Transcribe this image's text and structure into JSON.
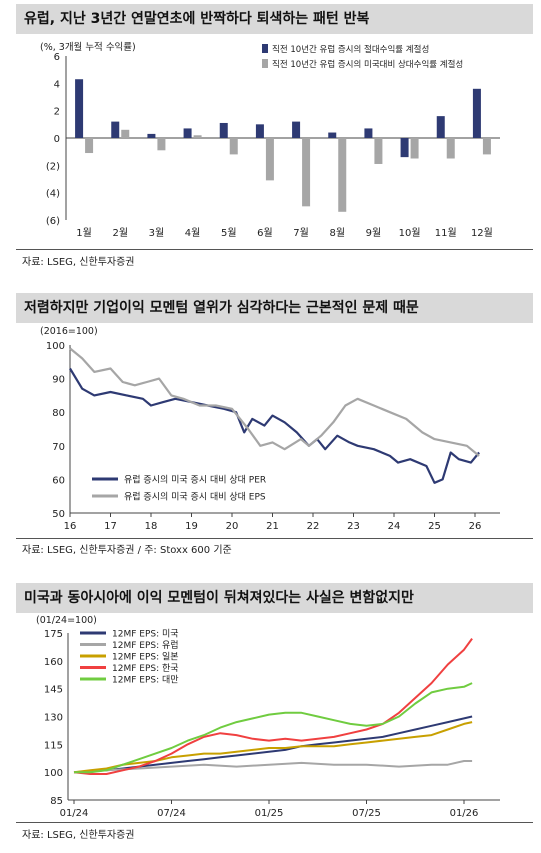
{
  "chart_data": [
    {
      "type": "bar",
      "title": "유럽, 지난 3년간 연말연초에 반짝하다 퇴색하는 패턴 반복",
      "ylabel": "(%, 3개월 누적 수익률)",
      "ylim": [
        -6,
        6
      ],
      "yticks": [
        "6",
        "4",
        "2",
        "0",
        "(2)",
        "(4)",
        "(6)"
      ],
      "legend_position": "top-right",
      "categories": [
        "1월",
        "2월",
        "3월",
        "4월",
        "5월",
        "6월",
        "7월",
        "8월",
        "9월",
        "10월",
        "11월",
        "12월"
      ],
      "series": [
        {
          "name": "직전 10년간 유럽 증시의 절대수익률 계절성",
          "color": "#2e3a73",
          "values": [
            4.3,
            1.2,
            0.3,
            0.7,
            1.1,
            1.0,
            1.2,
            0.4,
            0.7,
            -1.4,
            1.6,
            3.6
          ]
        },
        {
          "name": "직전 10년간 유럽 증시의 미국대비 상대수익률 계절성",
          "color": "#a6a6a6",
          "values": [
            -1.1,
            0.6,
            -0.9,
            0.2,
            -1.2,
            -3.1,
            -5.0,
            -5.4,
            -1.9,
            -1.5,
            -1.5,
            -1.2
          ]
        }
      ],
      "source": "자료: LSEG, 신한투자증권"
    },
    {
      "type": "line",
      "title": "저렴하지만 기업이익 모멘텀 열위가 심각하다는 근본적인 문제 때문",
      "ylabel": "(2016=100)",
      "ylim": [
        50,
        100
      ],
      "xlim": [
        16,
        26.2
      ],
      "xticks": [
        "16",
        "17",
        "18",
        "19",
        "20",
        "21",
        "22",
        "23",
        "24",
        "25",
        "26"
      ],
      "yticks": [
        "100",
        "90",
        "80",
        "70",
        "60",
        "50"
      ],
      "legend_position": "bottom-left",
      "series": [
        {
          "name": "유럽 증시의 미국 증시 대비 상대 PER",
          "color": "#2e3a73",
          "points": [
            [
              16.0,
              93
            ],
            [
              16.3,
              87
            ],
            [
              16.6,
              85
            ],
            [
              17.0,
              86
            ],
            [
              17.4,
              85
            ],
            [
              17.8,
              84
            ],
            [
              18.0,
              82
            ],
            [
              18.3,
              83
            ],
            [
              18.6,
              84
            ],
            [
              19.0,
              83
            ],
            [
              19.4,
              82
            ],
            [
              19.8,
              81
            ],
            [
              20.1,
              80
            ],
            [
              20.3,
              74
            ],
            [
              20.5,
              78
            ],
            [
              20.8,
              76
            ],
            [
              21.0,
              79
            ],
            [
              21.3,
              77
            ],
            [
              21.6,
              74
            ],
            [
              21.9,
              70
            ],
            [
              22.1,
              72
            ],
            [
              22.3,
              69
            ],
            [
              22.6,
              73
            ],
            [
              22.9,
              71
            ],
            [
              23.1,
              70
            ],
            [
              23.5,
              69
            ],
            [
              23.9,
              67
            ],
            [
              24.1,
              65
            ],
            [
              24.4,
              66
            ],
            [
              24.8,
              64
            ],
            [
              25.0,
              59
            ],
            [
              25.2,
              60
            ],
            [
              25.4,
              68
            ],
            [
              25.6,
              66
            ],
            [
              25.9,
              65
            ],
            [
              26.1,
              68
            ]
          ]
        },
        {
          "name": "유럽 증시의 미국 증시 대비 상대 EPS",
          "color": "#a6a6a6",
          "points": [
            [
              16.0,
              99
            ],
            [
              16.3,
              96
            ],
            [
              16.6,
              92
            ],
            [
              17.0,
              93
            ],
            [
              17.3,
              89
            ],
            [
              17.6,
              88
            ],
            [
              17.9,
              89
            ],
            [
              18.2,
              90
            ],
            [
              18.5,
              85
            ],
            [
              18.8,
              84
            ],
            [
              19.2,
              82
            ],
            [
              19.6,
              82
            ],
            [
              20.0,
              81
            ],
            [
              20.4,
              75
            ],
            [
              20.7,
              70
            ],
            [
              21.0,
              71
            ],
            [
              21.3,
              69
            ],
            [
              21.7,
              72
            ],
            [
              21.9,
              70
            ],
            [
              22.2,
              73
            ],
            [
              22.5,
              77
            ],
            [
              22.8,
              82
            ],
            [
              23.1,
              84
            ],
            [
              23.5,
              82
            ],
            [
              23.9,
              80
            ],
            [
              24.3,
              78
            ],
            [
              24.7,
              74
            ],
            [
              25.0,
              72
            ],
            [
              25.4,
              71
            ],
            [
              25.8,
              70
            ],
            [
              26.1,
              67
            ]
          ]
        }
      ],
      "source": "자료: LSEG, 신한투자증권 / 주: Stoxx 600 기준"
    },
    {
      "type": "line",
      "title": "미국과 동아시아에 이익 모멘텀이 뒤쳐져있다는 사실은 변함없지만",
      "ylabel": "(01/24=100)",
      "ylim": [
        85,
        175
      ],
      "xticks": [
        "01/24",
        "07/24",
        "01/25",
        "07/25",
        "01/26"
      ],
      "xtick_months": [
        0,
        6,
        12,
        18,
        24
      ],
      "yticks": [
        "175",
        "160",
        "145",
        "130",
        "115",
        "100",
        "85"
      ],
      "legend_position": "top-left",
      "series": [
        {
          "name": "12MF EPS: 미국",
          "color": "#2e3a73",
          "points": [
            [
              0,
              100
            ],
            [
              1,
              100.5
            ],
            [
              2,
              101
            ],
            [
              3,
              102
            ],
            [
              4,
              103
            ],
            [
              5,
              104
            ],
            [
              6,
              105
            ],
            [
              7,
              106
            ],
            [
              8,
              107
            ],
            [
              9,
              108
            ],
            [
              10,
              109
            ],
            [
              11,
              110
            ],
            [
              12,
              111
            ],
            [
              13,
              112
            ],
            [
              14,
              114
            ],
            [
              15,
              115
            ],
            [
              16,
              116
            ],
            [
              17,
              117
            ],
            [
              18,
              118
            ],
            [
              19,
              119
            ],
            [
              20,
              121
            ],
            [
              21,
              123
            ],
            [
              22,
              125
            ],
            [
              23,
              127
            ],
            [
              24,
              129
            ],
            [
              24.5,
              130
            ]
          ]
        },
        {
          "name": "12MF EPS: 유럽",
          "color": "#a6a6a6",
          "points": [
            [
              0,
              100
            ],
            [
              2,
              101
            ],
            [
              4,
              102
            ],
            [
              6,
              103
            ],
            [
              8,
              104
            ],
            [
              10,
              103
            ],
            [
              12,
              104
            ],
            [
              14,
              105
            ],
            [
              16,
              104
            ],
            [
              18,
              104
            ],
            [
              20,
              103
            ],
            [
              22,
              104
            ],
            [
              23,
              104
            ],
            [
              24,
              106
            ],
            [
              24.5,
              106
            ]
          ]
        },
        {
          "name": "12MF EPS: 일본",
          "color": "#c8a000",
          "points": [
            [
              0,
              100
            ],
            [
              1,
              101
            ],
            [
              2,
              102
            ],
            [
              3,
              104
            ],
            [
              4,
              105
            ],
            [
              5,
              106
            ],
            [
              6,
              108
            ],
            [
              7,
              109
            ],
            [
              8,
              110
            ],
            [
              9,
              110
            ],
            [
              10,
              111
            ],
            [
              11,
              112
            ],
            [
              12,
              113
            ],
            [
              13,
              113
            ],
            [
              14,
              114
            ],
            [
              15,
              114
            ],
            [
              16,
              114
            ],
            [
              17,
              115
            ],
            [
              18,
              116
            ],
            [
              19,
              117
            ],
            [
              20,
              118
            ],
            [
              21,
              119
            ],
            [
              22,
              120
            ],
            [
              23,
              123
            ],
            [
              24,
              126
            ],
            [
              24.5,
              127
            ]
          ]
        },
        {
          "name": "12MF EPS: 한국",
          "color": "#f04040",
          "points": [
            [
              0,
              100
            ],
            [
              1,
              99
            ],
            [
              2,
              99
            ],
            [
              3,
              101
            ],
            [
              4,
              103
            ],
            [
              5,
              106
            ],
            [
              6,
              110
            ],
            [
              7,
              115
            ],
            [
              8,
              119
            ],
            [
              9,
              121
            ],
            [
              10,
              120
            ],
            [
              11,
              118
            ],
            [
              12,
              117
            ],
            [
              13,
              118
            ],
            [
              14,
              117
            ],
            [
              15,
              118
            ],
            [
              16,
              119
            ],
            [
              17,
              121
            ],
            [
              18,
              123
            ],
            [
              19,
              126
            ],
            [
              20,
              132
            ],
            [
              21,
              140
            ],
            [
              22,
              148
            ],
            [
              23,
              158
            ],
            [
              24,
              166
            ],
            [
              24.5,
              172
            ]
          ]
        },
        {
          "name": "12MF EPS: 대만",
          "color": "#70cc40",
          "points": [
            [
              0,
              100
            ],
            [
              1,
              100
            ],
            [
              2,
              101
            ],
            [
              3,
              104
            ],
            [
              4,
              107
            ],
            [
              5,
              110
            ],
            [
              6,
              113
            ],
            [
              7,
              117
            ],
            [
              8,
              120
            ],
            [
              9,
              124
            ],
            [
              10,
              127
            ],
            [
              11,
              129
            ],
            [
              12,
              131
            ],
            [
              13,
              132
            ],
            [
              14,
              132
            ],
            [
              15,
              130
            ],
            [
              16,
              128
            ],
            [
              17,
              126
            ],
            [
              18,
              125
            ],
            [
              19,
              126
            ],
            [
              20,
              130
            ],
            [
              21,
              137
            ],
            [
              22,
              143
            ],
            [
              23,
              145
            ],
            [
              24,
              146
            ],
            [
              24.5,
              148
            ]
          ]
        }
      ],
      "source": "자료: LSEG, 신한투자증권"
    }
  ]
}
